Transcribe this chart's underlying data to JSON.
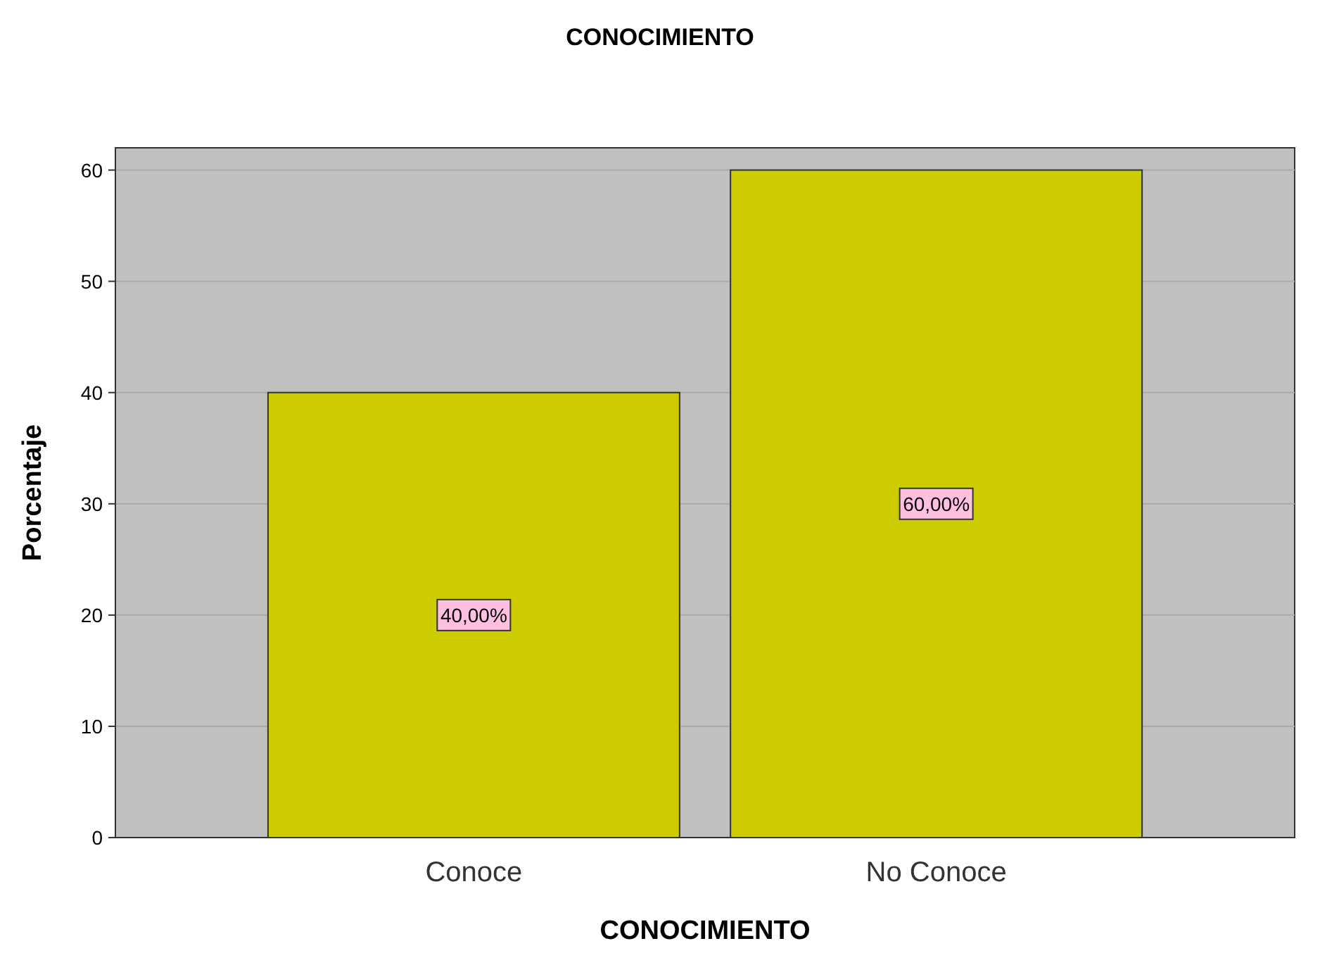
{
  "chart_data": {
    "type": "bar",
    "title": "CONOCIMIENTO",
    "xlabel": "CONOCIMIENTO",
    "ylabel": "Porcentaje",
    "categories": [
      "Conoce",
      "No Conoce"
    ],
    "values": [
      40,
      60
    ],
    "value_labels": [
      "40,00%",
      "60,00%"
    ],
    "color": "#cccc00",
    "ylim": [
      0,
      62
    ],
    "yticks": [
      0,
      10,
      20,
      30,
      40,
      50,
      60
    ],
    "grid": "y"
  }
}
